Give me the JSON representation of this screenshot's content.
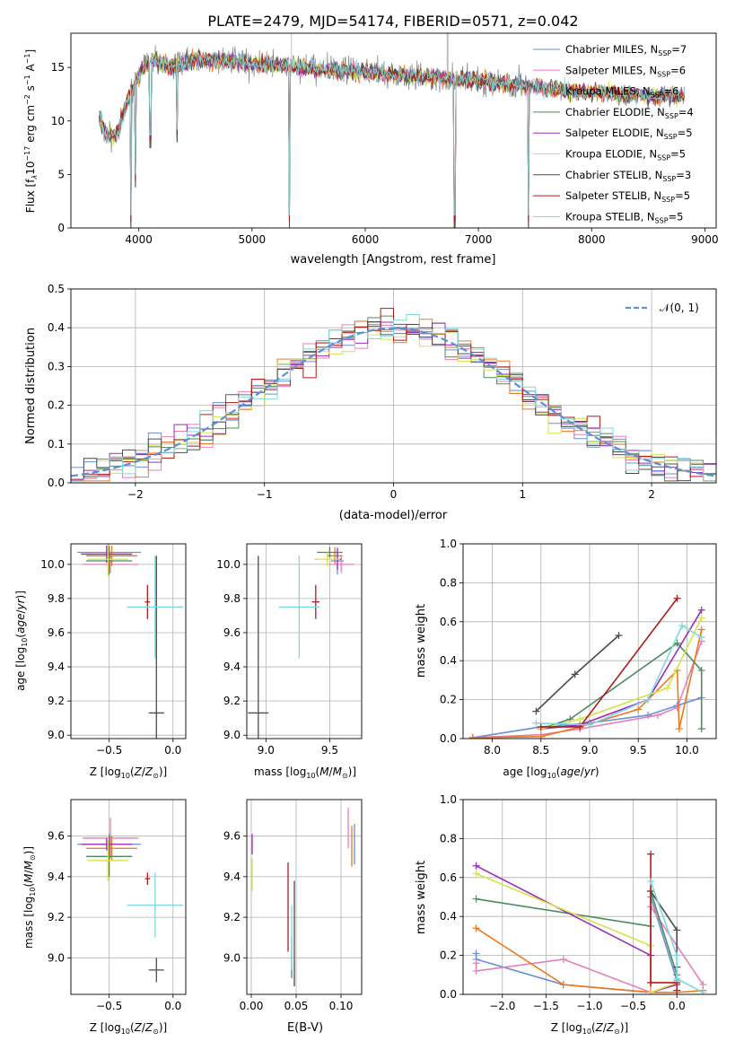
{
  "figure": {
    "title": "PLATE=2479, MJD=54174, FIBERID=0571, z=0.042"
  },
  "styles": {
    "colors": [
      "#6a8fd8",
      "#e87fb8",
      "#e97a20",
      "#4e8a5f",
      "#9a2db5",
      "#d4e34a",
      "#4d4d4d",
      "#b01b1b",
      "#7fd8dd"
    ],
    "normal_color": "#5b8fd8",
    "grid_color": "#b0b0b0",
    "data_color": "#808080"
  },
  "chart_data": [
    {
      "id": "spectrum",
      "type": "line",
      "xlabel": "wavelength [Angstrom, rest frame]",
      "ylabel": "Flux [f",
      "ylabel_parts": [
        "Flux [f",
        "λ",
        "10",
        "−17",
        " erg cm",
        "−2",
        " s",
        "−1",
        " A",
        "−1",
        "]"
      ],
      "xlim": [
        3400,
        9100
      ],
      "ylim": [
        0,
        18.2
      ],
      "xticks": [
        4000,
        5000,
        6000,
        7000,
        8000,
        9000
      ],
      "yticks": [
        0,
        5,
        10,
        15
      ],
      "grid": false,
      "legend_position": "top-right",
      "legend": [
        {
          "label": "Chabrier MILES, N",
          "sub": "SSP",
          "tail": "=7"
        },
        {
          "label": "Salpeter MILES, N",
          "sub": "SSP",
          "tail": "=6"
        },
        {
          "label": "Kroupa MILES, N",
          "sub": "SSP",
          "tail": "=6"
        },
        {
          "label": "Chabrier ELODIE, N",
          "sub": "SSP",
          "tail": "=4"
        },
        {
          "label": "Salpeter ELODIE, N",
          "sub": "SSP",
          "tail": "=5"
        },
        {
          "label": "Kroupa ELODIE, N",
          "sub": "SSP",
          "tail": "=5"
        },
        {
          "label": "Chabrier STELIB, N",
          "sub": "SSP",
          "tail": "=3"
        },
        {
          "label": "Salpeter STELIB, N",
          "sub": "SSP",
          "tail": "=5"
        },
        {
          "label": "Kroupa STELIB, N",
          "sub": "SSP",
          "tail": "=5"
        }
      ],
      "continuum": {
        "x": [
          3650,
          3700,
          3800,
          3900,
          4000,
          4100,
          4300,
          4500,
          4800,
          5000,
          5300,
          5600,
          6000,
          6300,
          6600,
          7000,
          7200,
          7400,
          7600,
          7900,
          8200,
          8500,
          8800
        ],
        "y": [
          10.5,
          9.0,
          8.5,
          12.0,
          14.2,
          15.8,
          15.0,
          15.8,
          15.6,
          15.4,
          15.2,
          14.8,
          14.6,
          14.3,
          14.0,
          13.8,
          13.5,
          13.3,
          13.0,
          12.7,
          12.6,
          12.3,
          12.3
        ]
      },
      "spikes": [
        {
          "x": 3930,
          "y": 0.0
        },
        {
          "x": 3968,
          "y": 3.8
        },
        {
          "x": 4102,
          "y": 7.5
        },
        {
          "x": 4340,
          "y": 8.0
        },
        {
          "x": 5330,
          "y": 0.0
        },
        {
          "x": 6790,
          "y": 0.0
        },
        {
          "x": 7440,
          "y": 0.0
        }
      ]
    },
    {
      "id": "residuals",
      "type": "histogram",
      "xlabel": "(data-model)/error",
      "ylabel": "Normed distribution",
      "xlim": [
        -2.5,
        2.5
      ],
      "ylim": [
        0,
        0.5
      ],
      "xticks": [
        -2,
        -1,
        0,
        1,
        2
      ],
      "yticks": [
        0.0,
        0.1,
        0.2,
        0.3,
        0.4,
        0.5
      ],
      "grid": true,
      "legend_position": "top-right",
      "legend": [
        {
          "label": "𝒩(0, 1)"
        }
      ],
      "bin_width": 0.1
    },
    {
      "id": "age-vs-Z",
      "type": "scatter",
      "xlabel": "Z [log",
      "ylabel": "age  [log",
      "xlim": [
        -0.8,
        0.1
      ],
      "ylim": [
        8.98,
        10.12
      ],
      "xticks": [
        -0.5,
        0.0
      ],
      "yticks": [
        9.0,
        9.2,
        9.4,
        9.6,
        9.8,
        10.0
      ],
      "grid": true,
      "points": [
        {
          "x": -0.5,
          "y": 10.07,
          "xerr": 0.25,
          "yerr": 0.04
        },
        {
          "x": -0.49,
          "y": 10.0,
          "xerr": 0.22,
          "yerr": 0.05
        },
        {
          "x": -0.48,
          "y": 10.05,
          "xerr": 0.2,
          "yerr": 0.06
        },
        {
          "x": -0.5,
          "y": 10.02,
          "xerr": 0.18,
          "yerr": 0.08
        },
        {
          "x": -0.52,
          "y": 10.06,
          "xerr": 0.2,
          "yerr": 0.05
        },
        {
          "x": -0.51,
          "y": 10.03,
          "xerr": 0.16,
          "yerr": 0.1
        },
        {
          "x": -0.13,
          "y": 9.13,
          "xerr": 0.06,
          "yerr": 0.92
        },
        {
          "x": -0.2,
          "y": 9.78,
          "xerr": 0.02,
          "yerr": 0.1
        },
        {
          "x": -0.14,
          "y": 9.75,
          "xerr": 0.22,
          "yerr": 0.3
        }
      ]
    },
    {
      "id": "age-vs-mass",
      "type": "scatter",
      "xlabel": "mass [log",
      "xlim": [
        8.85,
        9.75
      ],
      "ylim": [
        8.98,
        10.12
      ],
      "xticks": [
        9.0,
        9.5
      ],
      "yticks": [
        9.0,
        9.2,
        9.4,
        9.6,
        9.8,
        10.0
      ],
      "grid": true,
      "points": [
        {
          "x": 9.56,
          "y": 10.02,
          "xerr": 0.05,
          "yerr": 0.08
        },
        {
          "x": 9.59,
          "y": 10.0,
          "xerr": 0.1,
          "yerr": 0.05
        },
        {
          "x": 9.54,
          "y": 10.05,
          "xerr": 0.06,
          "yerr": 0.05
        },
        {
          "x": 9.5,
          "y": 10.07,
          "xerr": 0.1,
          "yerr": 0.03
        },
        {
          "x": 9.56,
          "y": 10.03,
          "xerr": 0.03,
          "yerr": 0.06
        },
        {
          "x": 9.48,
          "y": 10.03,
          "xerr": 0.1,
          "yerr": 0.04
        },
        {
          "x": 8.94,
          "y": 9.13,
          "xerr": 0.08,
          "yerr": 0.92
        },
        {
          "x": 9.39,
          "y": 9.78,
          "xerr": 0.03,
          "yerr": 0.1
        },
        {
          "x": 9.26,
          "y": 9.75,
          "xerr": 0.16,
          "yerr": 0.3
        }
      ]
    },
    {
      "id": "weight-vs-age",
      "type": "line",
      "xlabel": "age  [log",
      "ylabel": "mass weight",
      "xlim": [
        7.7,
        10.3
      ],
      "ylim": [
        0,
        1.0
      ],
      "xticks": [
        8.0,
        8.5,
        9.0,
        9.5,
        10.0
      ],
      "yticks": [
        0.0,
        0.2,
        0.4,
        0.6,
        0.8,
        1.0
      ],
      "grid": true,
      "series": [
        {
          "x": [
            7.8,
            8.5,
            9.0,
            9.6,
            9.9,
            10.15
          ],
          "y": [
            0.005,
            0.06,
            0.08,
            0.12,
            0.17,
            0.21
          ]
        },
        {
          "x": [
            7.8,
            8.5,
            8.9,
            9.7,
            9.9,
            10.15
          ],
          "y": [
            0.005,
            0.02,
            0.05,
            0.12,
            0.16,
            0.5
          ]
        },
        {
          "x": [
            7.8,
            8.5,
            8.9,
            9.5,
            9.9,
            9.92,
            10.15
          ],
          "y": [
            0.005,
            0.01,
            0.06,
            0.15,
            0.35,
            0.05,
            0.56
          ]
        },
        {
          "x": [
            8.5,
            8.8,
            9.9,
            10.15,
            10.15
          ],
          "y": [
            0.05,
            0.1,
            0.49,
            0.35,
            0.05
          ]
        },
        {
          "x": [
            8.5,
            8.9,
            9.6,
            10.15
          ],
          "y": [
            0.05,
            0.07,
            0.2,
            0.66
          ]
        },
        {
          "x": [
            8.5,
            8.9,
            9.8,
            10.15
          ],
          "y": [
            0.05,
            0.1,
            0.26,
            0.62
          ]
        },
        {
          "x": [
            8.45,
            8.85,
            9.3
          ],
          "y": [
            0.14,
            0.33,
            0.53
          ]
        },
        {
          "x": [
            8.5,
            8.9,
            9.9
          ],
          "y": [
            0.06,
            0.06,
            0.72
          ]
        },
        {
          "x": [
            8.45,
            9.0,
            9.6,
            9.95,
            10.15
          ],
          "y": [
            0.08,
            0.07,
            0.2,
            0.58,
            0.52
          ]
        }
      ]
    },
    {
      "id": "mass-vs-Z",
      "type": "scatter",
      "xlabel": "Z [log",
      "ylabel": "mass [log",
      "xlim": [
        -0.8,
        0.1
      ],
      "ylim": [
        8.82,
        9.78
      ],
      "xticks": [
        -0.5,
        0.0
      ],
      "yticks": [
        9.0,
        9.2,
        9.4,
        9.6
      ],
      "grid": true,
      "points": [
        {
          "x": -0.5,
          "y": 9.56,
          "xerr": 0.25,
          "yerr": 0.05
        },
        {
          "x": -0.49,
          "y": 9.59,
          "xerr": 0.22,
          "yerr": 0.1
        },
        {
          "x": -0.48,
          "y": 9.54,
          "xerr": 0.2,
          "yerr": 0.06
        },
        {
          "x": -0.5,
          "y": 9.5,
          "xerr": 0.18,
          "yerr": 0.1
        },
        {
          "x": -0.52,
          "y": 9.56,
          "xerr": 0.2,
          "yerr": 0.03
        },
        {
          "x": -0.51,
          "y": 9.48,
          "xerr": 0.16,
          "yerr": 0.1
        },
        {
          "x": -0.13,
          "y": 8.94,
          "xerr": 0.06,
          "yerr": 0.06
        },
        {
          "x": -0.2,
          "y": 9.39,
          "xerr": 0.02,
          "yerr": 0.03
        },
        {
          "x": -0.14,
          "y": 9.26,
          "xerr": 0.22,
          "yerr": 0.16
        }
      ]
    },
    {
      "id": "mass-vs-EBV",
      "type": "scatter",
      "xlabel": "E(B-V)",
      "xlim": [
        -0.005,
        0.123
      ],
      "ylim": [
        8.82,
        9.78
      ],
      "xticks": [
        0.0,
        0.05,
        0.1
      ],
      "yticks": [
        9.0,
        9.2,
        9.4,
        9.6
      ],
      "grid": true,
      "points": [
        {
          "x": 0.115,
          "y": 9.56,
          "yerr": 0.1
        },
        {
          "x": 0.108,
          "y": 9.64,
          "yerr": 0.1
        },
        {
          "x": 0.112,
          "y": 9.55,
          "yerr": 0.1
        },
        {
          "x": 0.045,
          "y": 9.0,
          "yerr": 0.1
        },
        {
          "x": 0.001,
          "y": 9.56,
          "yerr": 0.05
        },
        {
          "x": 0.001,
          "y": 9.41,
          "yerr": 0.08
        },
        {
          "x": 0.048,
          "y": 9.12,
          "yerr": 0.26
        },
        {
          "x": 0.041,
          "y": 9.25,
          "yerr": 0.22
        },
        {
          "x": 0.045,
          "y": 9.1,
          "yerr": 0.16
        }
      ]
    },
    {
      "id": "weight-vs-Z",
      "type": "line",
      "xlabel": "Z [log",
      "ylabel": "mass weight",
      "xlim": [
        -2.45,
        0.45
      ],
      "ylim": [
        0,
        1.0
      ],
      "xticks": [
        -2.0,
        -1.5,
        -1.0,
        -0.5,
        0.0
      ],
      "yticks": [
        0.0,
        0.2,
        0.4,
        0.6,
        0.8,
        1.0
      ],
      "grid": true,
      "series": [
        {
          "x": [
            -2.3,
            -2.3,
            -1.3,
            -0.3,
            -0.3,
            0.0
          ],
          "y": [
            0.21,
            0.18,
            0.05,
            0.01,
            0.5,
            0.07
          ]
        },
        {
          "x": [
            -2.3,
            -2.3,
            -1.3,
            -0.3,
            -0.3,
            0.3
          ],
          "y": [
            0.16,
            0.12,
            0.18,
            0.01,
            0.45,
            0.05
          ]
        },
        {
          "x": [
            -2.3,
            -1.3,
            -0.3,
            0.0,
            0.3
          ],
          "y": [
            0.34,
            0.05,
            0.01,
            0.01,
            0.02
          ]
        },
        {
          "x": [
            -2.3,
            -0.3,
            -0.3,
            0.0
          ],
          "y": [
            0.49,
            0.35,
            0.53,
            0.1
          ]
        },
        {
          "x": [
            -2.3,
            -0.3,
            -0.3,
            0.0
          ],
          "y": [
            0.66,
            0.2,
            0.01,
            0.05
          ]
        },
        {
          "x": [
            -2.3,
            -0.3,
            -0.3,
            0.0
          ],
          "y": [
            0.62,
            0.25,
            0.01,
            0.06
          ]
        },
        {
          "x": [
            -0.3,
            0.0,
            0.0
          ],
          "y": [
            0.53,
            0.33,
            0.14
          ]
        },
        {
          "x": [
            -0.3,
            -0.3,
            0.0,
            0.0
          ],
          "y": [
            0.72,
            0.06,
            0.06,
            0.02
          ]
        },
        {
          "x": [
            -0.3,
            0.0,
            0.0,
            0.3
          ],
          "y": [
            0.58,
            0.2,
            0.08,
            0.01
          ]
        }
      ]
    }
  ]
}
